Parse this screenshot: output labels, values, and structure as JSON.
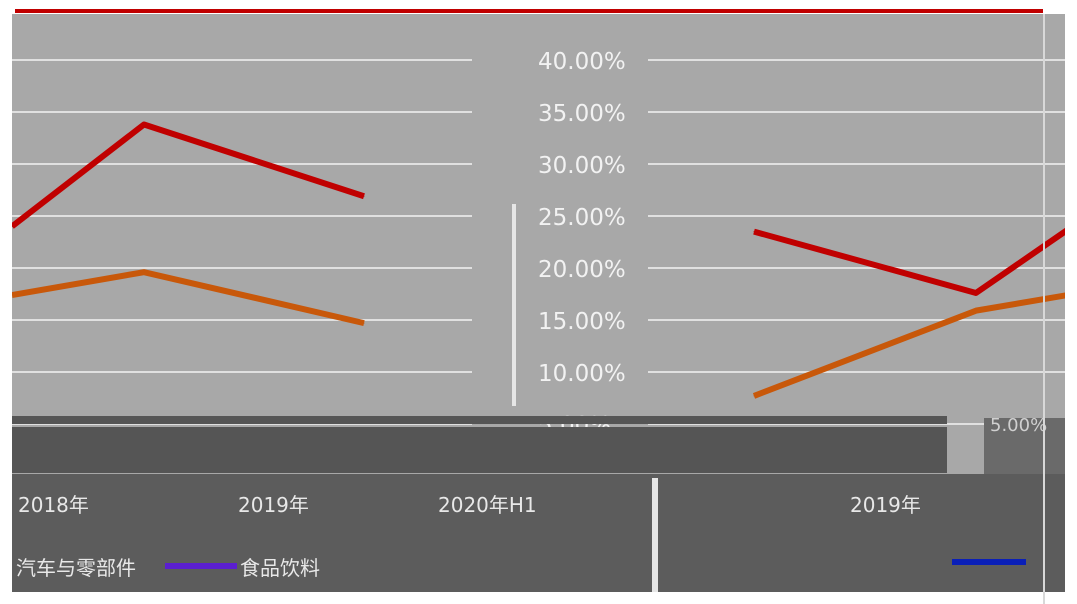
{
  "chart_data": {
    "type": "line",
    "y_ticks": [
      "40.00%",
      "35.00%",
      "30.00%",
      "25.00%",
      "20.00%",
      "15.00%",
      "10.00%",
      "5.00%"
    ],
    "ylim": [
      5,
      40
    ],
    "left_panel": {
      "x": [
        0,
        1,
        2
      ],
      "series": [
        {
          "color": "#c00000",
          "values": [
            24.0,
            33.8,
            26.9
          ]
        },
        {
          "color": "#c8580a",
          "values": [
            17.4,
            19.6,
            14.7
          ]
        }
      ]
    },
    "right_panel": {
      "x": [
        0,
        1,
        2
      ],
      "series": [
        {
          "color": "#c00000",
          "values": [
            23.5,
            17.6,
            24.5
          ]
        },
        {
          "color": "#c8580a",
          "values": [
            7.7,
            15.9,
            17.6
          ]
        }
      ]
    },
    "x_labels_left": [
      "2018年",
      "2019年",
      "2020年H1"
    ],
    "x_labels_right": [
      "2019年"
    ],
    "legend": [
      {
        "name": "汽车与零部件",
        "color": "#5b1fd0"
      },
      {
        "name": "食品饮料",
        "color": "#0a1fb8"
      }
    ],
    "right_tick_fragment": "5.00%"
  }
}
